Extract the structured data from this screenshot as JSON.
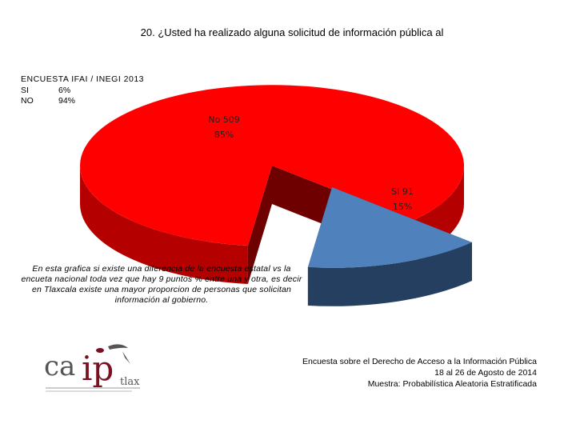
{
  "title": "20. ¿Usted ha realizado alguna solicitud de información pública al",
  "survey_box": {
    "heading": "ENCUESTA IFAI / INEGI 2013",
    "rows": [
      {
        "label": "SI",
        "value": "6%"
      },
      {
        "label": "NO",
        "value": "94%"
      }
    ]
  },
  "chart_data": {
    "type": "pie",
    "title": "",
    "style": "3d-exploded",
    "slices": [
      {
        "name": "No",
        "count": 509,
        "percent": 85,
        "label_line1": "No 509",
        "label_line2": "85%",
        "color": "#ff0000",
        "side_color": "#b50000",
        "inner_color": "#6e0000"
      },
      {
        "name": "SI",
        "count": 91,
        "percent": 15,
        "label_line1": "SI 91",
        "label_line2": "15%",
        "color": "#4f81bd",
        "side_color": "#253f60",
        "inner_color": "#1c3048"
      }
    ]
  },
  "note": "En esta grafica si existe una diferencia de la encuesta estatal vs la encueta nacional toda vez que hay 9 puntos % entre una y otra, es decir en Tlaxcala existe una mayor proporcion de personas que solicitan información al gobierno.",
  "footer": {
    "line1": "Encuesta sobre el Derecho de Acceso a la Información Pública",
    "line2": "18 al 26 de Agosto de 2014",
    "line3": "Muestra: Probabilística Aleatoria Estratificada"
  },
  "logo": {
    "text_ca": "ca",
    "text_ip": "ip",
    "text_tlax": "tlax",
    "colors": {
      "brand": "#7a1020",
      "grey": "#555555"
    }
  }
}
